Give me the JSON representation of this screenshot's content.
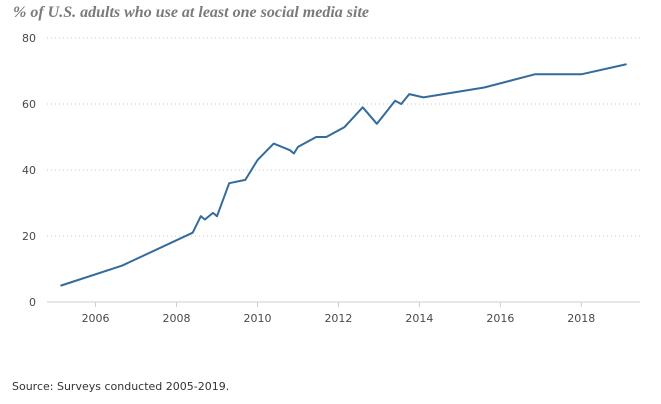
{
  "chart_data": {
    "type": "line",
    "title": "% of U.S. adults who use at least one social media site",
    "xlabel": "",
    "ylabel": "",
    "xlim": [
      2004.8,
      2019.45
    ],
    "ylim": [
      0,
      80
    ],
    "x_ticks": [
      2006,
      2008,
      2010,
      2012,
      2014,
      2016,
      2018
    ],
    "y_ticks": [
      0,
      20,
      40,
      60,
      80
    ],
    "grid": "horizontal-dotted",
    "series": [
      {
        "name": "Social media use",
        "color": "#336b9a",
        "x": [
          2005.15,
          2006.65,
          2008.4,
          2008.6,
          2008.7,
          2008.9,
          2009.0,
          2009.3,
          2009.7,
          2010.0,
          2010.4,
          2010.8,
          2010.9,
          2011.0,
          2011.45,
          2011.7,
          2012.15,
          2012.6,
          2012.95,
          2013.4,
          2013.55,
          2013.75,
          2014.1,
          2015.6,
          2016.85,
          2018.0,
          2019.1
        ],
        "values": [
          5,
          11,
          21,
          26,
          25,
          27,
          26,
          36,
          37,
          43,
          48,
          46,
          45,
          47,
          50,
          50,
          53,
          59,
          54,
          61,
          60,
          63,
          62,
          65,
          69,
          69,
          72
        ]
      }
    ]
  },
  "source": "Source: Surveys conducted 2005-2019."
}
